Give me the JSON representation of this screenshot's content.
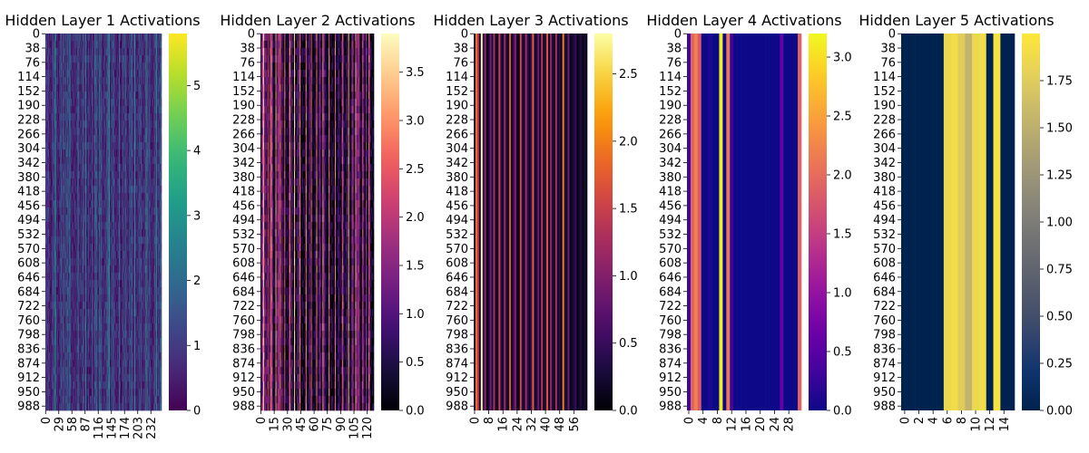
{
  "chart_data": [
    {
      "type": "heatmap",
      "title": "Hidden Layer 1 Activations",
      "colormap": "viridis",
      "rows": 1000,
      "columns": 256,
      "x_ticks": [
        "0",
        "29",
        "58",
        "87",
        "116",
        "145",
        "174",
        "203",
        "232"
      ],
      "x_tick_values": [
        0,
        29,
        58,
        87,
        116,
        145,
        174,
        203,
        232
      ],
      "y_ticks": [
        "0",
        "38",
        "76",
        "114",
        "152",
        "190",
        "228",
        "266",
        "304",
        "342",
        "380",
        "418",
        "456",
        "494",
        "532",
        "570",
        "608",
        "646",
        "684",
        "722",
        "760",
        "798",
        "836",
        "874",
        "912",
        "950",
        "988"
      ],
      "colorbar": {
        "min": 0,
        "max": 5.8,
        "ticks": [
          "0",
          "1",
          "2",
          "3",
          "4",
          "5"
        ],
        "tick_values": [
          0,
          1,
          2,
          3,
          4,
          5
        ]
      },
      "value_range": [
        0,
        5.8
      ],
      "pattern": "noisy",
      "bright_columns": [],
      "column_values": []
    },
    {
      "type": "heatmap",
      "title": "Hidden Layer 2 Activations",
      "colormap": "magma",
      "rows": 1000,
      "columns": 128,
      "x_ticks": [
        "0",
        "15",
        "30",
        "45",
        "60",
        "75",
        "90",
        "105",
        "120"
      ],
      "x_tick_values": [
        0,
        15,
        30,
        45,
        60,
        75,
        90,
        105,
        120
      ],
      "y_ticks": [
        "0",
        "38",
        "76",
        "114",
        "152",
        "190",
        "228",
        "266",
        "304",
        "342",
        "380",
        "418",
        "456",
        "494",
        "532",
        "570",
        "608",
        "646",
        "684",
        "722",
        "760",
        "798",
        "836",
        "874",
        "912",
        "950",
        "988"
      ],
      "colorbar": {
        "min": 0,
        "max": 3.9,
        "ticks": [
          "0.0",
          "0.5",
          "1.0",
          "1.5",
          "2.0",
          "2.5",
          "3.0",
          "3.5"
        ],
        "tick_values": [
          0,
          0.5,
          1,
          1.5,
          2,
          2.5,
          3,
          3.5
        ]
      },
      "value_range": [
        0,
        3.9
      ],
      "pattern": "striped-noisy",
      "bright_columns": [
        3,
        8,
        12,
        17,
        22,
        27,
        33,
        38,
        44,
        51,
        57,
        63,
        70,
        77,
        84,
        92,
        99,
        107,
        115,
        122
      ],
      "column_values": []
    },
    {
      "type": "heatmap",
      "title": "Hidden Layer 3 Activations",
      "colormap": "inferno",
      "rows": 1000,
      "columns": 64,
      "x_ticks": [
        "0",
        "8",
        "16",
        "24",
        "32",
        "40",
        "48",
        "56"
      ],
      "x_tick_values": [
        0,
        8,
        16,
        24,
        32,
        40,
        48,
        56
      ],
      "y_ticks": [
        "0",
        "38",
        "76",
        "114",
        "152",
        "190",
        "228",
        "266",
        "304",
        "342",
        "380",
        "418",
        "456",
        "494",
        "532",
        "570",
        "608",
        "646",
        "684",
        "722",
        "760",
        "798",
        "836",
        "874",
        "912",
        "950",
        "988"
      ],
      "colorbar": {
        "min": 0,
        "max": 2.8,
        "ticks": [
          "0.0",
          "0.5",
          "1.0",
          "1.5",
          "2.0",
          "2.5"
        ],
        "tick_values": [
          0,
          0.5,
          1,
          1.5,
          2,
          2.5
        ]
      },
      "value_range": [
        0,
        2.8
      ],
      "pattern": "columns",
      "bright_columns": [],
      "column_values": [
        0.3,
        1.9,
        1.4,
        0.2,
        2.8,
        0.4,
        1.1,
        0.1,
        0.2,
        0.9,
        0.3,
        1.3,
        0.2,
        0.1,
        1.5,
        0.4,
        0.2,
        1.2,
        0.3,
        0.1,
        1.7,
        0.2,
        0.5,
        1.0,
        0.2,
        0.1,
        1.6,
        0.3,
        0.2,
        1.2,
        0.4,
        0.1,
        0.6,
        1.8,
        0.2,
        0.3,
        0.9,
        0.2,
        1.4,
        0.1,
        0.3,
        1.7,
        0.2,
        1.1,
        0.3,
        0.1,
        1.3,
        0.2,
        0.4,
        0.1,
        2.0,
        0.3,
        0.2,
        0.9,
        0.1,
        0.2,
        0.3,
        0.5,
        0.1,
        0.2,
        0.3,
        0.1,
        0.2,
        0.1
      ]
    },
    {
      "type": "heatmap",
      "title": "Hidden Layer 4 Activations",
      "colormap": "plasma",
      "rows": 1000,
      "columns": 32,
      "x_ticks": [
        "0",
        "4",
        "8",
        "12",
        "16",
        "20",
        "24",
        "28"
      ],
      "x_tick_values": [
        0,
        4,
        8,
        12,
        16,
        20,
        24,
        28
      ],
      "y_ticks": [
        "0",
        "38",
        "76",
        "114",
        "152",
        "190",
        "228",
        "266",
        "304",
        "342",
        "380",
        "418",
        "456",
        "494",
        "532",
        "570",
        "608",
        "646",
        "684",
        "722",
        "760",
        "798",
        "836",
        "874",
        "912",
        "950",
        "988"
      ],
      "colorbar": {
        "min": 0,
        "max": 3.2,
        "ticks": [
          "0.0",
          "0.5",
          "1.0",
          "1.5",
          "2.0",
          "2.5",
          "3.0"
        ],
        "tick_values": [
          0,
          0.5,
          1,
          1.5,
          2,
          2.5,
          3
        ]
      },
      "value_range": [
        0,
        3.2
      ],
      "pattern": "columns",
      "bright_columns": [],
      "column_values": [
        0.3,
        1.9,
        2.2,
        1.8,
        0.0,
        0.0,
        0.1,
        0.0,
        0.0,
        3.15,
        0.0,
        2.1,
        0.3,
        0.0,
        0.0,
        0.0,
        0.0,
        0.0,
        0.0,
        0.0,
        0.0,
        0.0,
        0.0,
        0.0,
        0.0,
        0.0,
        0.6,
        0.0,
        0.0,
        0.0,
        0.0,
        1.9
      ]
    },
    {
      "type": "heatmap",
      "title": "Hidden Layer 5 Activations",
      "colormap": "cividis",
      "rows": 1000,
      "columns": 16,
      "x_ticks": [
        "0",
        "2",
        "4",
        "6",
        "8",
        "10",
        "12",
        "14"
      ],
      "x_tick_values": [
        0,
        2,
        4,
        6,
        8,
        10,
        12,
        14
      ],
      "y_ticks": [
        "0",
        "38",
        "76",
        "114",
        "152",
        "190",
        "228",
        "266",
        "304",
        "342",
        "380",
        "418",
        "456",
        "494",
        "532",
        "570",
        "608",
        "646",
        "684",
        "722",
        "760",
        "798",
        "836",
        "874",
        "912",
        "950",
        "988"
      ],
      "colorbar": {
        "min": 0,
        "max": 2.0,
        "ticks": [
          "0.00",
          "0.25",
          "0.50",
          "0.75",
          "1.00",
          "1.25",
          "1.50",
          "1.75"
        ],
        "tick_values": [
          0,
          0.25,
          0.5,
          0.75,
          1,
          1.25,
          1.5,
          1.75
        ]
      },
      "value_range": [
        0,
        2.0
      ],
      "pattern": "columns",
      "bright_columns": [],
      "column_values": [
        0,
        0,
        0,
        0,
        0,
        0,
        1.85,
        1.9,
        1.75,
        1.55,
        1.85,
        1.9,
        0,
        1.95,
        0,
        0
      ]
    }
  ]
}
